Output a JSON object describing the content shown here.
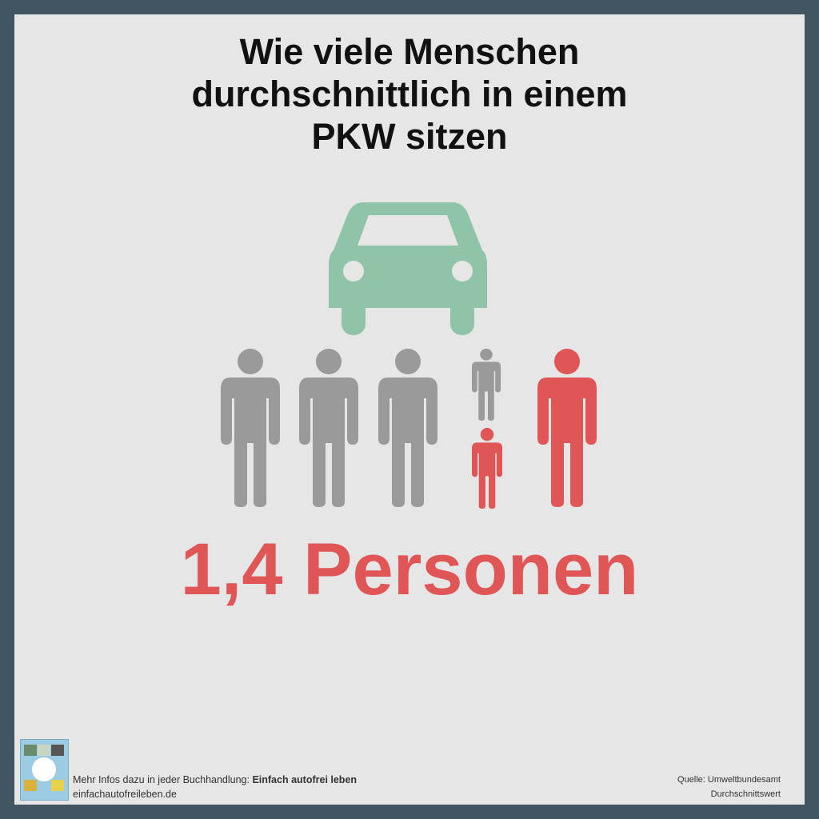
{
  "title": "Wie viele Menschen\ndurchschnittlich in einem\nPKW sitzen",
  "value_label": "1,4 Personen",
  "value": 1.4,
  "colors": {
    "car": "#8fc4a9",
    "person_gray": "#9a9a9a",
    "person_red": "#e05555",
    "frame": "#415561",
    "background": "#e6e6e6"
  },
  "icons": [
    "car-icon",
    "person-icon",
    "child-icon"
  ],
  "footer": {
    "info_prefix": "Mehr Infos dazu in jeder Buchhandlung: ",
    "book_title": "Einfach autofrei leben",
    "website": "einfachautofreileben.de",
    "source": "Quelle: Umweltbundesamt",
    "note": "Durchschnittswert"
  }
}
